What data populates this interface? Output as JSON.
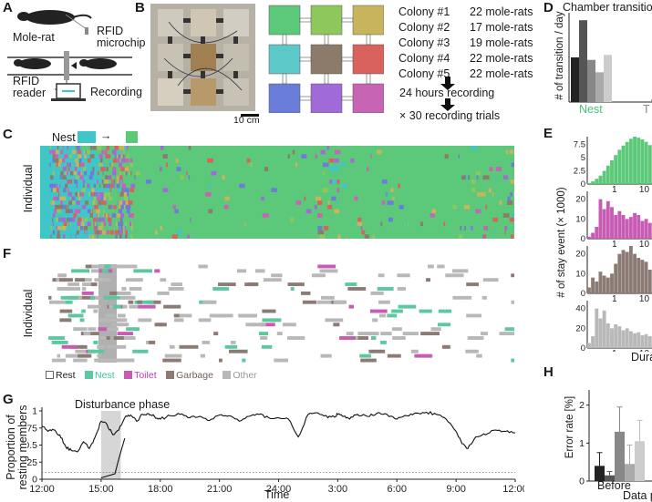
{
  "figure": {
    "panels": [
      "A",
      "B",
      "C",
      "D",
      "E",
      "F",
      "G",
      "H"
    ]
  },
  "panel_a": {
    "mole_rat": "Mole-rat",
    "rfid_microchip_line1": "RFID",
    "rfid_microchip_line2": "microchip",
    "rfid_reader_line1": "RFID",
    "rfid_reader_line2": "reader",
    "recording": "Recording"
  },
  "panel_b": {
    "scale": "10 cm",
    "chamber_colors": [
      "#5cc87a",
      "#8ec85c",
      "#c8b45c",
      "#5cc8c8",
      "#8c7a6a",
      "#d9625c",
      "#6a7ed9",
      "#a06ad9",
      "#c864b4"
    ],
    "colonies": [
      {
        "name": "Colony #1",
        "count": "22 mole-rats"
      },
      {
        "name": "Colony #2",
        "count": "17 mole-rats"
      },
      {
        "name": "Colony #3",
        "count": "19 mole-rats"
      },
      {
        "name": "Colony #4",
        "count": "22 mole-rats"
      },
      {
        "name": "Colony #5",
        "count": "22 mole-rats"
      }
    ],
    "recording_hours": "24 hours recording",
    "trials": "× 30 recording trials"
  },
  "panel_c": {
    "legend_nest": "Nest",
    "arrow": "→",
    "ylabel": "Individual",
    "nest_color": "#3ec6c8",
    "nest_color_2": "#5cc87a"
  },
  "panel_d": {
    "title": "Chamber transition",
    "ylabel": "# of transition / day",
    "xlabel_nest": "Nest",
    "xlabel_t": "T"
  },
  "panel_e": {
    "ylabel": "# of stay event (× 1000)",
    "xlabel": "Dura",
    "ticks_10": "10",
    "ticks_1": "1"
  },
  "panel_f": {
    "ylabel": "Individual",
    "legend": [
      "Rest",
      "Nest",
      "Toilet",
      "Garbage",
      "Other"
    ],
    "legend_colors": [
      "#ffffff",
      "#5cc8a0",
      "#c85cb4",
      "#8c7a74",
      "#b8b8b8"
    ]
  },
  "panel_g": {
    "ylabel_line1": "Proportion of",
    "ylabel_line2": "resting members",
    "xlabel": "Time",
    "annotation": "Disturbance phase",
    "xticks": [
      "12:00",
      "15:00",
      "18:00",
      "21:00",
      "24:00",
      "3:00",
      "6:00",
      "9:00",
      "12:00"
    ],
    "yticks": [
      "0",
      "0.25",
      "0.5",
      "0.75",
      "1"
    ]
  },
  "panel_h": {
    "ylabel": "Error rate [%]",
    "xlabel_before": "Before",
    "xlabel_data": "Data p",
    "yticks": [
      "0",
      "1",
      "2"
    ]
  },
  "chart_data": [
    {
      "type": "bar",
      "panel": "D",
      "title": "Chamber transition",
      "ylabel": "# of transition / day",
      "xlabel": "",
      "categories": [
        "Nest",
        "T"
      ],
      "series": [
        {
          "values": [
            0.9,
            0.0
          ]
        },
        {
          "values": [
            1.65,
            0.0
          ]
        },
        {
          "values": [
            0.85,
            0.05
          ]
        },
        {
          "values": [
            0.6,
            0.0
          ]
        },
        {
          "values": [
            0.95,
            0.0
          ]
        }
      ],
      "ylim": [
        0,
        1.8
      ]
    },
    {
      "type": "bar",
      "panel": "E",
      "ylabel": "# of stay event (× 1000)",
      "xlabel": "Dura",
      "subplots": [
        {
          "color": "#5cc87a",
          "yticks": [
            "0",
            "2.5",
            "5",
            "7.5"
          ],
          "values": [
            0.2,
            0.5,
            1.0,
            1.6,
            2.5,
            3.5,
            4.5,
            5.5,
            6.5,
            7.3,
            8.0,
            8.6,
            9.0,
            8.8,
            8.5,
            8.0,
            7.4
          ]
        },
        {
          "color": "#c85cb4",
          "yticks": [
            "0",
            "10",
            "20"
          ],
          "values": [
            1,
            3,
            6,
            20,
            15,
            19,
            16,
            12,
            14,
            12,
            10,
            11,
            13,
            12,
            9,
            10,
            8
          ]
        },
        {
          "color": "#8c7a74",
          "yticks": [
            "0",
            "10",
            "20"
          ],
          "values": [
            3,
            8,
            6,
            11,
            9,
            8,
            10,
            15,
            20,
            22,
            21,
            24,
            20,
            18,
            17,
            16,
            12
          ]
        },
        {
          "color": "#b8b8b8",
          "yticks": [
            "0",
            "20",
            "40"
          ],
          "values": [
            5,
            12,
            40,
            30,
            38,
            25,
            20,
            24,
            22,
            18,
            20,
            17,
            15,
            16,
            13,
            14,
            12
          ]
        }
      ]
    },
    {
      "type": "line",
      "panel": "G",
      "xlabel": "Time",
      "ylabel": "Proportion of resting members",
      "x_ticks": [
        "12:00",
        "15:00",
        "18:00",
        "21:00",
        "24:00",
        "3:00",
        "6:00",
        "9:00",
        "12:00"
      ],
      "ylim": [
        0,
        1
      ],
      "disturbance_phase": [
        "15:00",
        "16:00"
      ],
      "reference_line": 0.1,
      "x_hours": [
        0,
        0.3,
        0.6,
        0.9,
        1.2,
        1.5,
        1.8,
        2.1,
        2.4,
        2.7,
        3.0,
        3.3,
        3.6,
        3.9,
        4.2,
        4.5,
        4.8,
        5.1,
        5.4,
        5.7,
        6.0,
        6.5,
        7,
        7.5,
        8,
        8.5,
        9,
        9.5,
        10,
        10.5,
        11,
        11.5,
        12,
        12.5,
        13,
        13.5,
        14,
        14.5,
        14.8,
        15.0,
        15.3,
        15.6,
        16,
        16.5,
        17,
        17.5,
        18,
        18.5,
        19,
        19.5,
        20,
        20.5,
        21,
        21.3,
        21.6,
        22,
        22.5,
        23,
        23.5,
        24
      ],
      "values": [
        0.78,
        0.7,
        0.72,
        0.65,
        0.48,
        0.42,
        0.4,
        0.55,
        0.45,
        0.62,
        0.85,
        0.8,
        0.65,
        0.72,
        0.9,
        0.94,
        0.85,
        0.95,
        0.96,
        0.92,
        0.88,
        0.93,
        0.95,
        0.9,
        0.92,
        0.86,
        0.94,
        0.93,
        0.85,
        0.92,
        0.95,
        0.9,
        0.9,
        0.88,
        0.62,
        0.95,
        0.97,
        0.9,
        0.92,
        0.95,
        0.92,
        0.88,
        0.95,
        0.92,
        0.97,
        0.95,
        0.88,
        0.93,
        0.97,
        0.98,
        0.95,
        0.88,
        0.7,
        0.52,
        0.45,
        0.62,
        0.65,
        0.72,
        0.7,
        0.68
      ]
    },
    {
      "type": "bar",
      "panel": "H",
      "ylabel": "Error rate [%]",
      "xlabel": "Data p",
      "categories": [
        "Before"
      ],
      "series": [
        {
          "values": [
            0.4
          ],
          "error": [
            0.35
          ]
        },
        {
          "values": [
            0.15
          ],
          "error": [
            0.1
          ]
        },
        {
          "values": [
            1.3
          ],
          "error": [
            0.65
          ]
        },
        {
          "values": [
            0.45
          ],
          "error": [
            0.5
          ]
        },
        {
          "values": [
            1.05
          ],
          "error": [
            0.55
          ]
        }
      ],
      "ylim": [
        0,
        2.4
      ]
    }
  ]
}
